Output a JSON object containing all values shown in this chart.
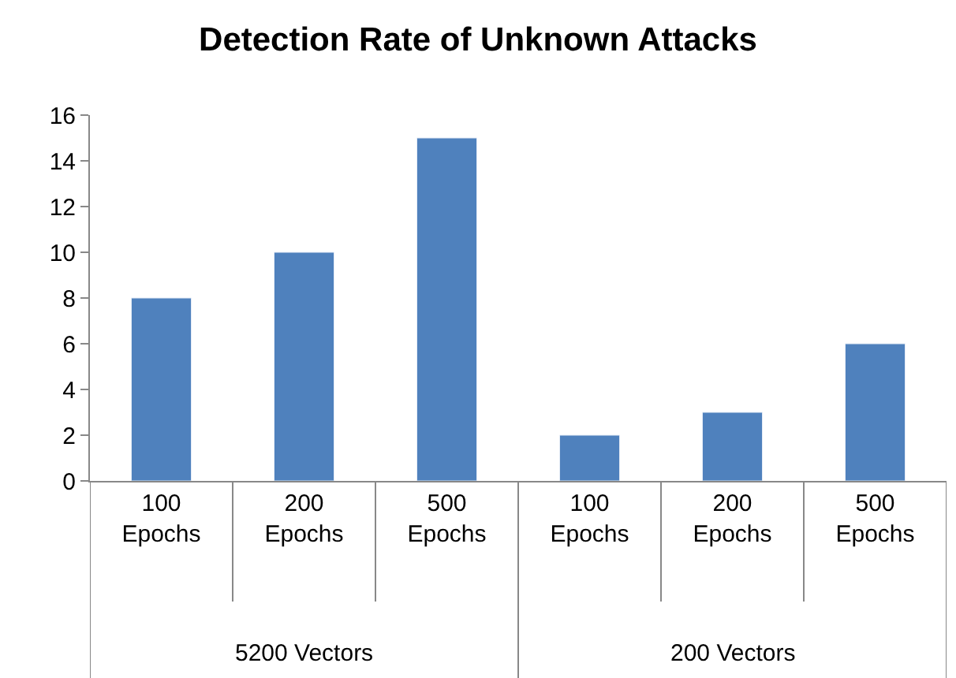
{
  "chart_data": {
    "type": "bar",
    "title": "Detection Rate of Unknown Attacks",
    "categories": [
      "100 Epochs",
      "200 Epochs",
      "500 Epochs",
      "100 Epochs",
      "200 Epochs",
      "500 Epochs"
    ],
    "values": [
      8,
      10,
      15,
      2,
      3,
      6
    ],
    "color": "#4f81bd",
    "ylim": [
      0,
      16
    ],
    "yticks": [
      0,
      2,
      4,
      6,
      8,
      10,
      12,
      14,
      16
    ],
    "legend": false,
    "annotations": [
      "5200 Vectors",
      "200 Vectors"
    ]
  }
}
